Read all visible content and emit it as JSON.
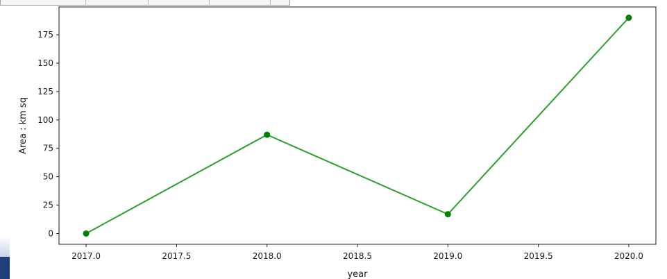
{
  "chart_data": {
    "type": "line",
    "title": "",
    "xlabel": "year",
    "ylabel": "Area : km sq",
    "x": [
      2017.0,
      2018.0,
      2019.0,
      2020.0
    ],
    "series": [
      {
        "values": [
          0,
          87,
          17,
          190
        ],
        "color": "#2ca02c",
        "marker_color": "#008000"
      }
    ],
    "xlim": [
      2016.85,
      2020.15
    ],
    "ylim": [
      -9.5,
      199.5
    ],
    "xticks": [
      2017.0,
      2017.5,
      2018.0,
      2018.5,
      2019.0,
      2019.5,
      2020.0
    ],
    "xtick_labels": [
      "2017.0",
      "2017.5",
      "2018.0",
      "2018.5",
      "2019.0",
      "2019.5",
      "2020.0"
    ],
    "yticks": [
      0,
      25,
      50,
      75,
      100,
      125,
      150,
      175
    ],
    "ytick_labels": [
      "0",
      "25",
      "50",
      "75",
      "100",
      "125",
      "150",
      "175"
    ],
    "grid": false,
    "legend": "none"
  }
}
